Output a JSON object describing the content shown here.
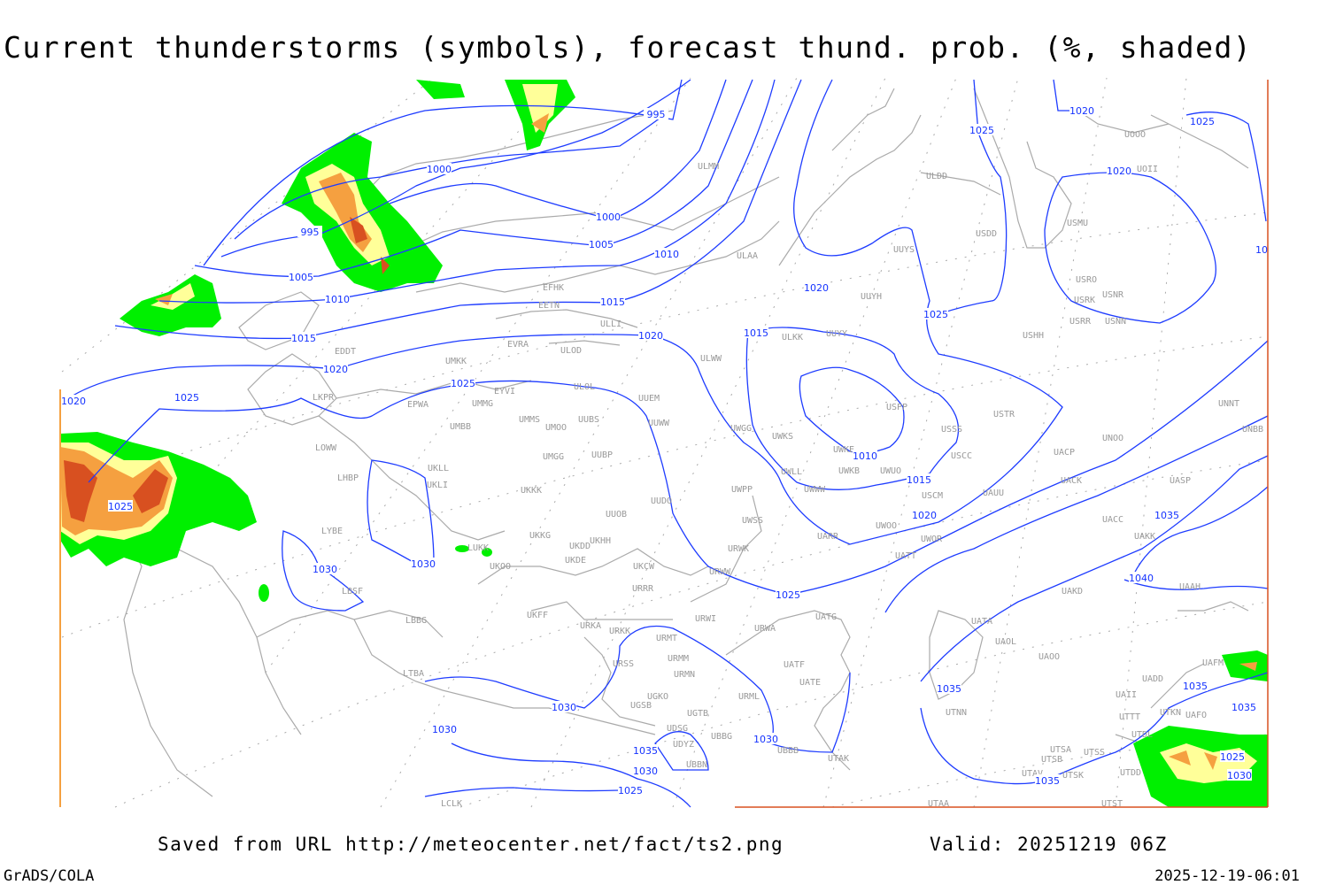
{
  "title": "Current thunderstorms (symbols), forecast thund. prob. (%, shaded)",
  "footer": {
    "saved_from": "Saved from URL http://meteocenter.net/fact/ts2.png",
    "valid": "Valid: 20251219 06Z",
    "software": "GrADS/COLA",
    "timestamp": "2025-12-19-06:01"
  },
  "colors": {
    "isobar": "#1e3cff",
    "coastline": "#aaaaaa",
    "station_label": "#999999",
    "prob_shading": [
      "#00f000",
      "#ffff99",
      "#f5a040",
      "#d85020"
    ]
  },
  "stations": [
    "EFHK",
    "EETN",
    "ULLI",
    "EVRA",
    "ULOD",
    "EDDT",
    "UMKK",
    "EYVI",
    "ULOL",
    "UUEM",
    "LKPR",
    "EPWA",
    "UMMG",
    "UMMS",
    "UMOO",
    "UUBS",
    "UUWW",
    "UMBB",
    "LOWW",
    "UMGG",
    "UUBP",
    "UKLL",
    "LHBP",
    "UKLI",
    "UKKK",
    "UUDO",
    "UUOB",
    "LYBE",
    "UKKG",
    "UKDD",
    "UKHH",
    "LUKK",
    "UKDE",
    "UKOO",
    "UKCW",
    "LBSF",
    "URRR",
    "UKFF",
    "URKA",
    "URKK",
    "URMT",
    "LBBG",
    "URSS",
    "URMM",
    "URMN",
    "LTBA",
    "UGKO",
    "UGSB",
    "UGTB",
    "UDSG",
    "UBBG",
    "UDYZ",
    "UBBN",
    "LCLK",
    "URWI",
    "URWA",
    "UATG",
    "UATF",
    "UATE",
    "URML",
    "UBBB",
    "UTAK",
    "ULAA",
    "ULMM",
    "ULDD",
    "UUYS",
    "USDD",
    "UUYH",
    "ULKK",
    "UUYY",
    "USHH",
    "ULWW",
    "USPP",
    "USTR",
    "UWGG",
    "UWKS",
    "USSS",
    "UWKE",
    "USCC",
    "UWLL",
    "UWKB",
    "UWUO",
    "UWWW",
    "UWPP",
    "USCM",
    "UAUU",
    "UWSS",
    "UARR",
    "UWOO",
    "UWOR",
    "UATT",
    "URWW",
    "URWK",
    "UACP",
    "UNOO",
    "UNNT",
    "UNBB",
    "UACK",
    "UASP",
    "UACC",
    "UAKK",
    "UAKD",
    "UAAH",
    "UATA",
    "UAOL",
    "UAOO",
    "UADD",
    "UAFM",
    "UAII",
    "UTKN",
    "UAFO",
    "UTTT",
    "UTDL",
    "UTNN",
    "UTSA",
    "UTSS",
    "UTSB",
    "UTDD",
    "UTAV",
    "UTSK",
    "UTAA",
    "UTST",
    "USMU",
    "UOOO",
    "UOII",
    "USRO",
    "USNR",
    "USRK",
    "USRR",
    "USNN"
  ],
  "isobar_labels": [
    "995",
    "1000",
    "995",
    "1000",
    "1005",
    "1010",
    "1005",
    "1010",
    "1015",
    "1015",
    "1020",
    "1020",
    "1025",
    "1020",
    "1025",
    "1025",
    "1030",
    "1030",
    "1020",
    "1015",
    "1025",
    "1025",
    "1020",
    "1025",
    "1020",
    "1010",
    "1015",
    "1020",
    "1025",
    "1035",
    "1040",
    "1035",
    "1030",
    "1030",
    "1035",
    "1030",
    "1030",
    "1025",
    "1035",
    "1035",
    "1035",
    "1025",
    "1030",
    "10"
  ]
}
